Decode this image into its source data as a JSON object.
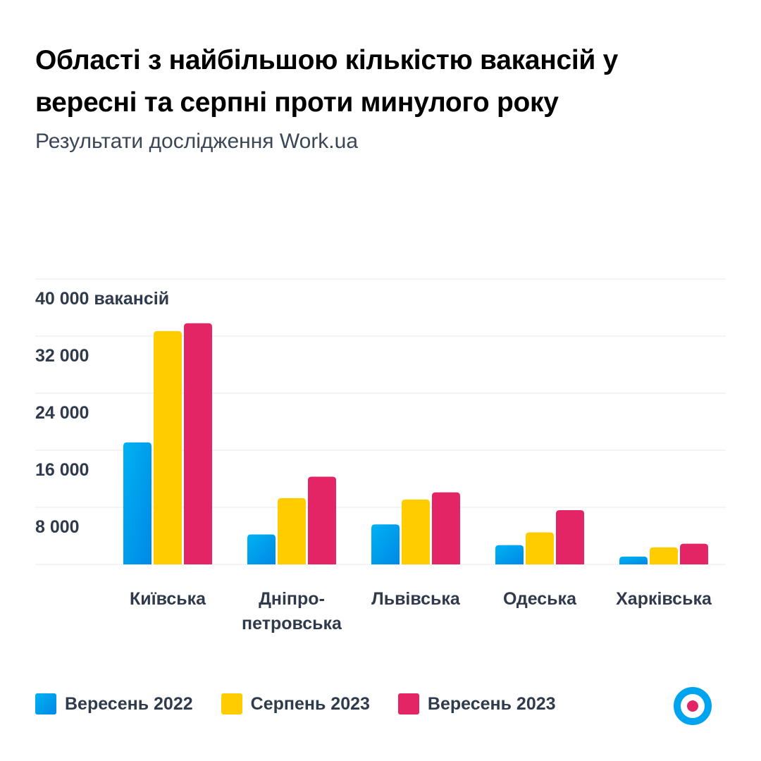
{
  "chart_data": {
    "type": "bar",
    "title": "Області з найбільшою кількістю вакансій у вересні та серпні проти минулого року",
    "subtitle": "Результати дослідження Work.ua",
    "categories": [
      [
        "Київська"
      ],
      [
        "Дніпро-",
        "петровська"
      ],
      [
        "Львівська"
      ],
      [
        "Одеська"
      ],
      [
        "Харківська"
      ]
    ],
    "y_ticks": [
      "8 000",
      "16 000",
      "24 000",
      "32 000",
      "40 000 вакансій"
    ],
    "y_tick_values": [
      8000,
      16000,
      24000,
      32000,
      40000
    ],
    "ylim": [
      0,
      40000
    ],
    "grid": true,
    "legend_position": "bottom-left",
    "series": [
      {
        "name": "Вересень 2022",
        "color": "#0a9be8",
        "values": [
          17100,
          4200,
          5600,
          2700,
          1100
        ]
      },
      {
        "name": "Серпень 2023",
        "color": "#ffcc00",
        "values": [
          32700,
          9300,
          9100,
          4500,
          2400
        ]
      },
      {
        "name": "Вересень 2023",
        "color": "#e32566",
        "values": [
          33800,
          12300,
          10100,
          7600,
          2900
        ]
      }
    ]
  },
  "logo": {
    "name": "work-ua-logo",
    "ring_color": "#00a3ee",
    "dot_color": "#e32566"
  }
}
